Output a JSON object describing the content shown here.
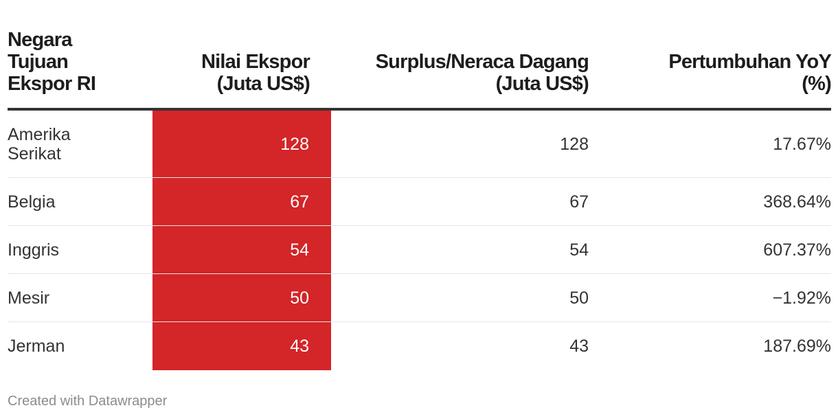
{
  "chart_data": {
    "type": "table",
    "columns": [
      [
        "Negara",
        "Tujuan",
        "Ekspor RI"
      ],
      [
        "Nilai Ekspor",
        "(Juta US$)"
      ],
      [
        "Surplus/Neraca Dagang",
        "(Juta US$)"
      ],
      [
        "Pertumbuhan YoY",
        "(%)"
      ]
    ],
    "rows": [
      {
        "country": [
          "Amerika",
          "Serikat"
        ],
        "export": "128",
        "surplus": "128",
        "growth": "17.67%"
      },
      {
        "country": [
          "Belgia"
        ],
        "export": "67",
        "surplus": "67",
        "growth": "368.64%"
      },
      {
        "country": [
          "Inggris"
        ],
        "export": "54",
        "surplus": "54",
        "growth": "607.37%"
      },
      {
        "country": [
          "Mesir"
        ],
        "export": "50",
        "surplus": "50",
        "growth": "−1.92%"
      },
      {
        "country": [
          "Jerman"
        ],
        "export": "43",
        "surplus": "43",
        "growth": "187.69%"
      }
    ],
    "highlight_color": "#d42528"
  },
  "footer": "Created with Datawrapper"
}
